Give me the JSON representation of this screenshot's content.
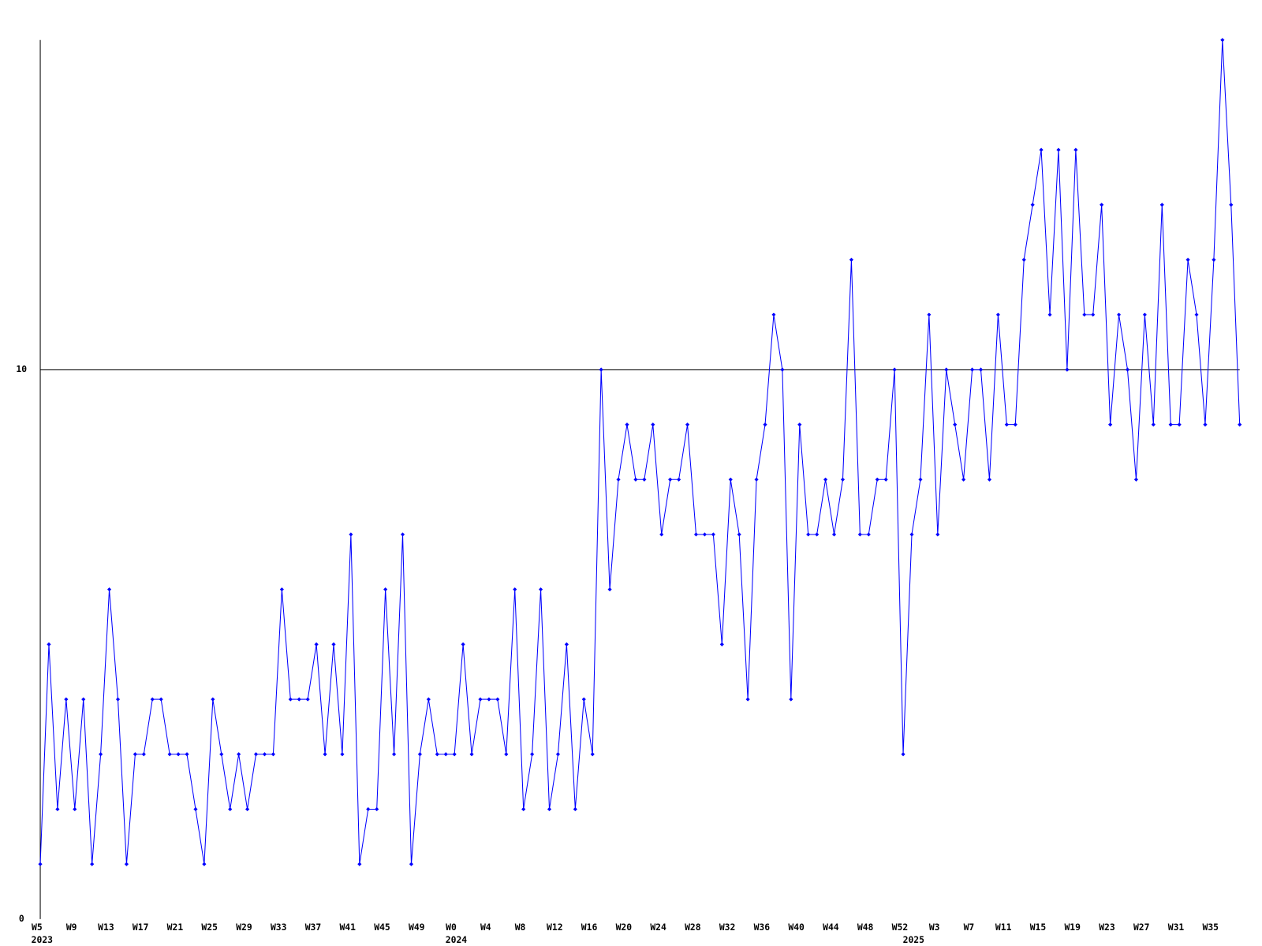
{
  "chart_data": {
    "type": "line",
    "color": "#0000ff",
    "axis_color": "#000000",
    "categories": [
      "W5",
      null,
      null,
      null,
      "W9",
      null,
      null,
      null,
      "W13",
      null,
      null,
      null,
      "W17",
      null,
      null,
      null,
      "W21",
      null,
      null,
      null,
      "W25",
      null,
      null,
      null,
      "W29",
      null,
      null,
      null,
      "W33",
      null,
      null,
      null,
      "W37",
      null,
      null,
      null,
      "W41",
      null,
      null,
      null,
      "W45",
      null,
      null,
      null,
      "W49",
      null,
      null,
      null,
      "W0",
      null,
      null,
      null,
      "W4",
      null,
      null,
      null,
      "W8",
      null,
      null,
      null,
      "W12",
      null,
      null,
      null,
      "W16",
      null,
      null,
      null,
      "W20",
      null,
      null,
      null,
      "W24",
      null,
      null,
      null,
      "W28",
      null,
      null,
      null,
      "W32",
      null,
      null,
      null,
      "W36",
      null,
      null,
      null,
      "W40",
      null,
      null,
      null,
      "W44",
      null,
      null,
      null,
      "W48",
      null,
      null,
      null,
      "W52",
      null,
      null,
      null,
      "W3",
      null,
      null,
      null,
      "W7",
      null,
      null,
      null,
      "W11",
      null,
      null,
      null,
      "W15",
      null,
      null,
      null,
      "W19",
      null,
      null,
      null,
      "W23",
      null,
      null,
      null,
      "W27",
      null,
      null,
      null,
      "W31",
      null,
      null,
      null,
      "W35",
      null,
      null,
      null
    ],
    "years": [
      "2023",
      null,
      null,
      null,
      null,
      null,
      null,
      null,
      null,
      null,
      null,
      null,
      null,
      null,
      null,
      null,
      null,
      null,
      null,
      null,
      null,
      null,
      null,
      null,
      null,
      null,
      null,
      null,
      null,
      null,
      null,
      null,
      null,
      null,
      null,
      null,
      null,
      null,
      null,
      null,
      null,
      null,
      null,
      null,
      null,
      null,
      null,
      null,
      "2024",
      null,
      null,
      null,
      null,
      null,
      null,
      null,
      null,
      null,
      null,
      null,
      null,
      null,
      null,
      null,
      null,
      null,
      null,
      null,
      null,
      null,
      null,
      null,
      null,
      null,
      null,
      null,
      null,
      null,
      null,
      null,
      null,
      null,
      null,
      null,
      null,
      null,
      null,
      null,
      null,
      null,
      null,
      null,
      null,
      null,
      null,
      null,
      null,
      null,
      null,
      null,
      null,
      "2025",
      null,
      null,
      null,
      null,
      null,
      null,
      null,
      null,
      null,
      null,
      null,
      null,
      null,
      null,
      null,
      null,
      null,
      null,
      null,
      null,
      null,
      null,
      null,
      null,
      null,
      null,
      null,
      null,
      null,
      null,
      null,
      null,
      null,
      null,
      null,
      null,
      null,
      null
    ],
    "values": [
      1,
      5,
      2,
      4,
      2,
      4,
      1,
      3,
      6,
      4,
      1,
      3,
      3,
      4,
      4,
      3,
      3,
      3,
      2,
      1,
      4,
      3,
      2,
      3,
      2,
      3,
      3,
      3,
      6,
      4,
      4,
      4,
      5,
      3,
      5,
      3,
      7,
      1,
      2,
      2,
      6,
      3,
      7,
      1,
      3,
      4,
      3,
      3,
      3,
      5,
      3,
      4,
      4,
      4,
      3,
      6,
      2,
      3,
      6,
      2,
      3,
      5,
      2,
      4,
      3,
      10,
      6,
      8,
      9,
      8,
      8,
      9,
      7,
      8,
      8,
      9,
      7,
      7,
      7,
      5,
      8,
      7,
      4,
      8,
      9,
      11,
      10,
      4,
      9,
      7,
      7,
      8,
      7,
      8,
      12,
      7,
      7,
      8,
      8,
      10,
      3,
      7,
      8,
      11,
      7,
      10,
      9,
      8,
      10,
      10,
      8,
      11,
      9,
      9,
      12,
      13,
      14,
      11,
      14,
      10,
      14,
      11,
      11,
      13,
      9,
      11,
      10,
      8,
      11,
      9,
      13,
      9,
      9,
      12,
      11,
      9,
      12,
      16,
      13,
      9
    ],
    "ylim": [
      0,
      16
    ],
    "yticks": [
      0,
      10
    ],
    "grid": true
  }
}
